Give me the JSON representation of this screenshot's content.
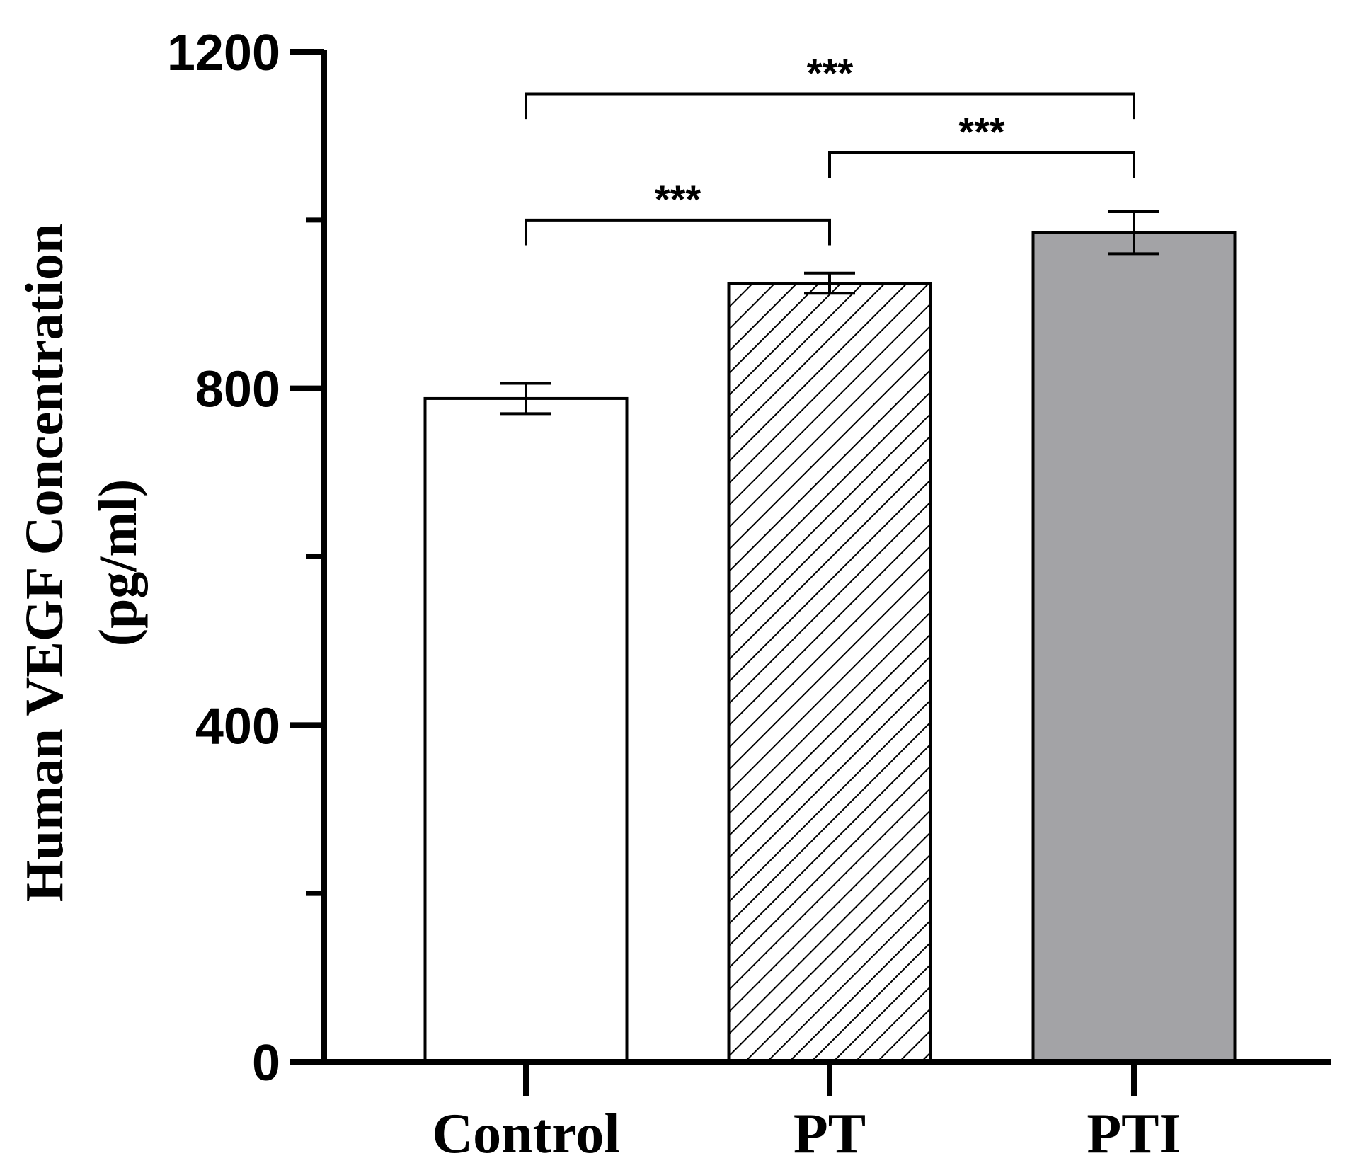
{
  "chart_data": {
    "type": "bar",
    "title": "",
    "xlabel": "",
    "ylabel": "Human VEGF Concentration",
    "ylabel_unit": "(pg/ml)",
    "ylim": [
      0,
      1200
    ],
    "yticks": [
      0,
      400,
      800,
      1200
    ],
    "yticks_minor": [
      200,
      600,
      1000
    ],
    "ytick_labels": [
      "0",
      "400",
      "800",
      "1200"
    ],
    "categories": [
      "Control",
      "PT",
      "PTI"
    ],
    "values": [
      788,
      925,
      985
    ],
    "errors": [
      18,
      12,
      25
    ],
    "fills": [
      "white",
      "hatch",
      "#a3a3a6"
    ],
    "significance": [
      {
        "from": 0,
        "to": 1,
        "label": "***",
        "y": 1000,
        "drop": 30
      },
      {
        "from": 1,
        "to": 2,
        "label": "***",
        "y": 1080,
        "drop": 30
      },
      {
        "from": 0,
        "to": 2,
        "label": "***",
        "y": 1150,
        "drop": 30
      }
    ],
    "grid": false,
    "legend": "none"
  }
}
